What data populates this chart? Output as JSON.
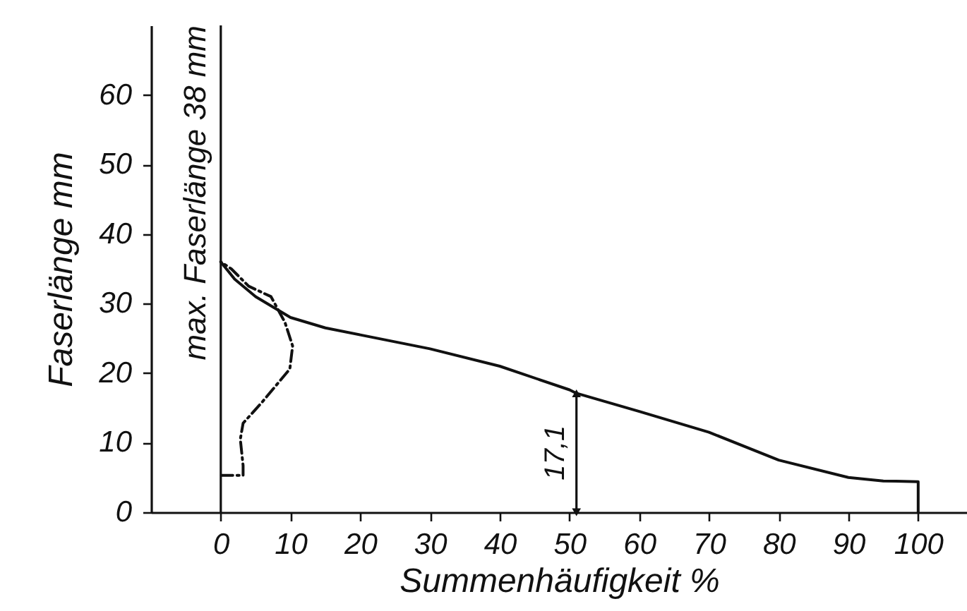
{
  "chart_data": {
    "type": "line",
    "xlabel": "Summenhäufigkeit  %",
    "ylabel": "Faserlänge  mm",
    "xlim": [
      -10,
      107
    ],
    "ylim": [
      0,
      70
    ],
    "xticks": [
      0,
      10,
      20,
      30,
      40,
      50,
      60,
      70,
      80,
      90,
      100
    ],
    "yticks": [
      0,
      10,
      20,
      30,
      40,
      50,
      60
    ],
    "grid": false,
    "series": [
      {
        "color": "#111111",
        "line_style": "solid",
        "x": [
          0,
          2,
          5,
          10,
          15,
          20,
          30,
          40,
          50,
          51,
          60,
          70,
          80,
          90,
          95,
          100,
          100
        ],
        "values": [
          36,
          33.5,
          31,
          28,
          26.5,
          25.5,
          23.5,
          21,
          17.6,
          17.1,
          14.5,
          11.5,
          7.5,
          5,
          4.5,
          4.4,
          0
        ]
      },
      {
        "color": "#111111",
        "line_style": "dashed",
        "x": [
          0.1,
          3.2,
          3.2,
          2.8,
          3.2,
          5.9,
          9.9,
          10.3,
          9.2,
          7.2,
          4,
          1.5,
          0
        ],
        "values": [
          5.3,
          5.3,
          6.7,
          10.5,
          12.8,
          15.8,
          20.6,
          23.9,
          27.3,
          31,
          32.5,
          35,
          36
        ]
      }
    ],
    "ref_lines": [
      {
        "axis": "x",
        "value": 0,
        "label": "max. Faserlänge  38 mm"
      }
    ],
    "annotations": [
      {
        "text": "17,1",
        "x": 51,
        "y": 17.1
      }
    ]
  }
}
